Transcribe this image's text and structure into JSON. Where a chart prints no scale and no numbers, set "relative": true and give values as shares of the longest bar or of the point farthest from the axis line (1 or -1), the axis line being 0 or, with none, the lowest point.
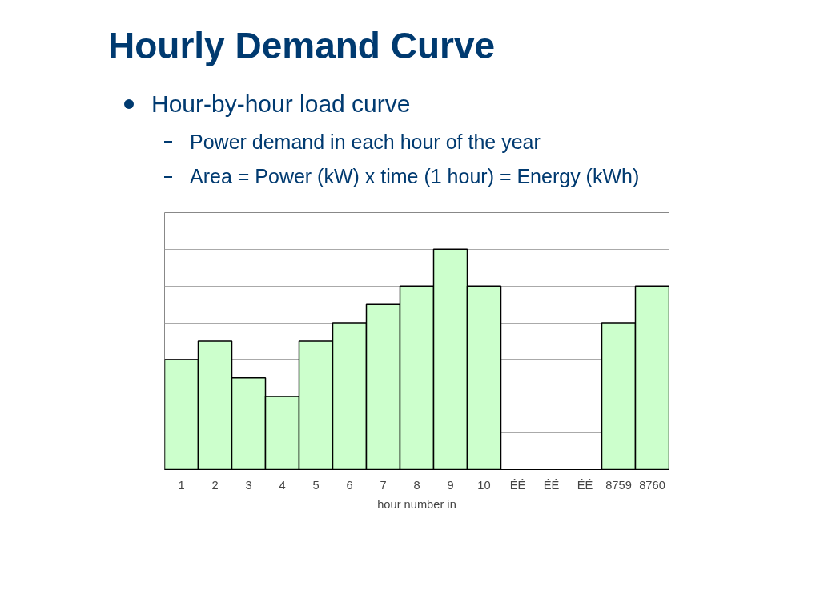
{
  "chart_data": {
    "type": "bar",
    "title": "Hourly Demand Curve",
    "subtitle": "Hour-by-hour load curve",
    "annotations": [
      "Power demand in each hour of the year",
      "Area = Power (kW) x time (1 hour) = Energy (kWh)"
    ],
    "xlabel": "hour number in",
    "categories": [
      "1",
      "2",
      "3",
      "4",
      "5",
      "6",
      "7",
      "8",
      "9",
      "10",
      "ÉÉ",
      "ÉÉ",
      "ÉÉ",
      "8759",
      "8760"
    ],
    "values": [
      0.5,
      0.583,
      0.417,
      0.333,
      0.583,
      0.667,
      0.75,
      0.833,
      1,
      0.833,
      null,
      null,
      null,
      0.667,
      0.833
    ],
    "color": "#ccffcc",
    "relative": true,
    "grid": "y"
  }
}
